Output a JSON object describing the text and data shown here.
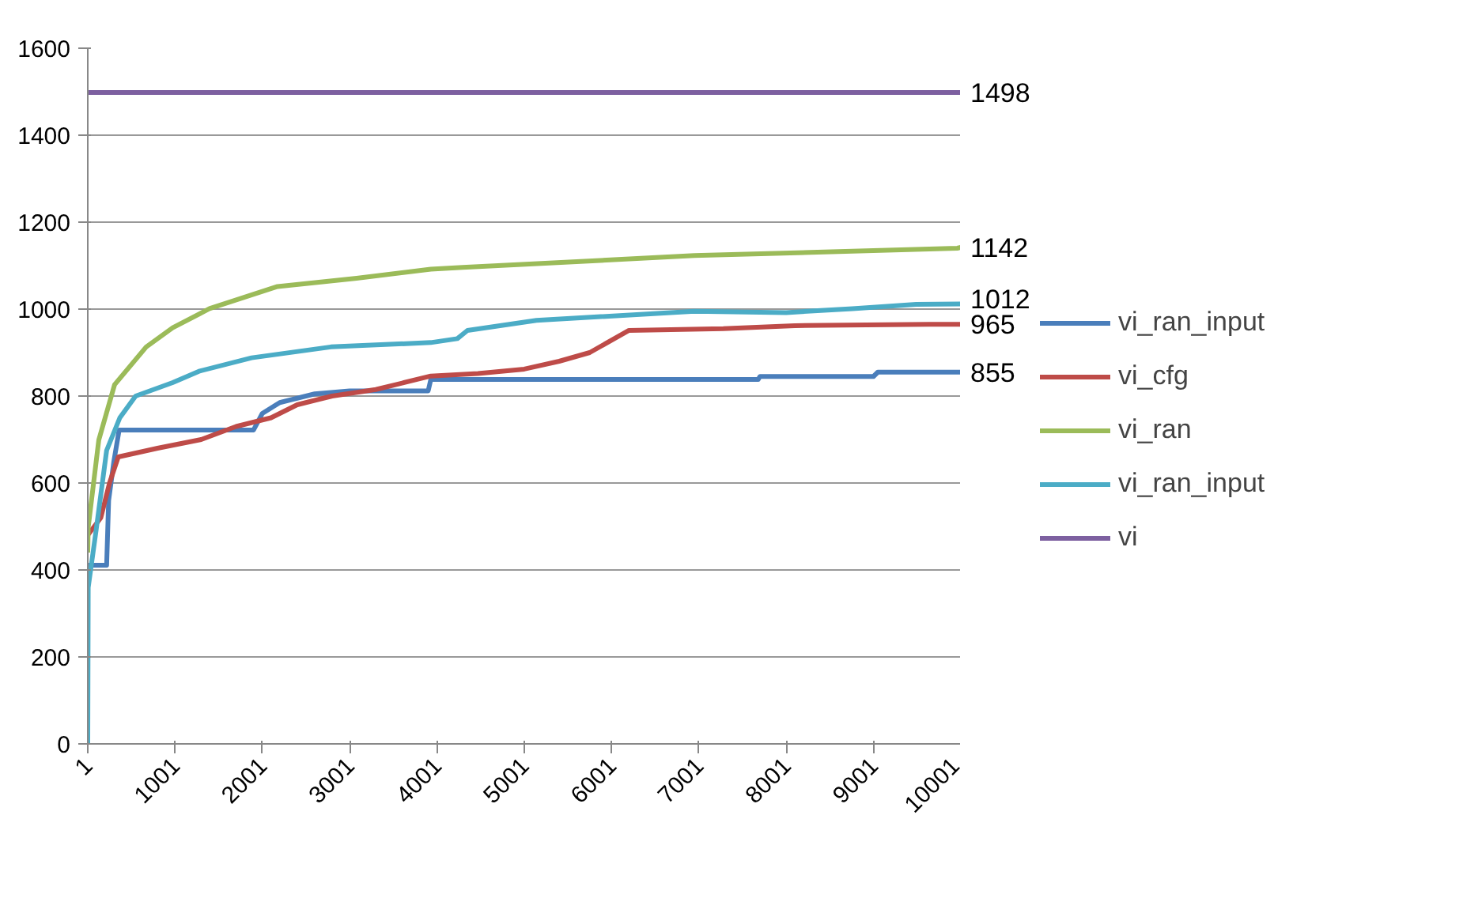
{
  "chart_data": {
    "type": "line",
    "xlim": [
      1,
      10001
    ],
    "xticks": [
      1,
      1001,
      2001,
      3001,
      4001,
      5001,
      6001,
      7001,
      8001,
      9001,
      10001
    ],
    "ylim": [
      0,
      1600
    ],
    "yticks": [
      0,
      200,
      400,
      600,
      800,
      1000,
      1200,
      1400,
      1600
    ],
    "grid": "y",
    "legend": "right",
    "series": [
      {
        "name": "vi_ran_input",
        "color": "#4a7ebb",
        "x": [
          1,
          217,
          240,
          300,
          360,
          1900,
          2000,
          2200,
          2600,
          3000,
          3900,
          3930,
          7680,
          7700,
          9000,
          9050,
          10001
        ],
        "values": [
          411,
          411,
          560,
          650,
          722,
          722,
          760,
          785,
          805,
          812,
          812,
          838,
          838,
          845,
          845,
          855,
          855
        ],
        "value_labels": [
          null,
          null,
          null,
          null,
          null,
          null,
          null,
          null,
          null,
          null,
          null,
          null,
          null,
          null,
          null,
          null,
          "855"
        ]
      },
      {
        "name": "vi_cfg",
        "color": "#be4b48",
        "x": [
          1,
          150,
          250,
          350,
          800,
          1300,
          1700,
          2100,
          2400,
          2800,
          3300,
          3930,
          4470,
          5000,
          5400,
          5750,
          6200,
          7280,
          8100,
          9640,
          10001
        ],
        "values": [
          480,
          520,
          600,
          660,
          680,
          700,
          730,
          750,
          780,
          800,
          815,
          846,
          852,
          862,
          880,
          900,
          951,
          955,
          962,
          965,
          965
        ],
        "value_labels": [
          null,
          null,
          null,
          null,
          null,
          null,
          null,
          null,
          null,
          null,
          null,
          null,
          null,
          null,
          null,
          null,
          null,
          null,
          null,
          null,
          "965"
        ]
      },
      {
        "name": "vi_ran",
        "color": "#9bbb59",
        "x": [
          1,
          6,
          127,
          308,
          670,
          973,
          1395,
          2174,
          3080,
          3930,
          4294,
          6950,
          9960,
          10001
        ],
        "values": [
          440,
          498,
          699,
          826,
          913,
          957,
          1001,
          1052,
          1071,
          1092,
          1096,
          1123,
          1140,
          1142
        ],
        "value_labels": [
          null,
          null,
          null,
          null,
          null,
          null,
          null,
          null,
          null,
          null,
          null,
          null,
          null,
          "1142"
        ]
      },
      {
        "name": "vi_ran_input",
        "color": "#4bacc6",
        "x": [
          1,
          6,
          97,
          217,
          368,
          549,
          973,
          1274,
          1878,
          2785,
          3930,
          4234,
          4350,
          5140,
          6950,
          8000,
          8760,
          9490,
          10001
        ],
        "values": [
          0,
          360,
          492,
          675,
          750,
          800,
          831,
          857,
          888,
          913,
          923,
          932,
          951,
          974,
          995,
          992,
          1001,
          1011,
          1012
        ],
        "value_labels": [
          null,
          null,
          null,
          null,
          null,
          null,
          null,
          null,
          null,
          null,
          null,
          null,
          null,
          null,
          null,
          null,
          null,
          null,
          "1012"
        ]
      },
      {
        "name": "vi",
        "color": "#7d60a0",
        "x": [
          1,
          10001
        ],
        "values": [
          1498,
          1498
        ],
        "value_labels": [
          null,
          "1498"
        ]
      }
    ]
  }
}
